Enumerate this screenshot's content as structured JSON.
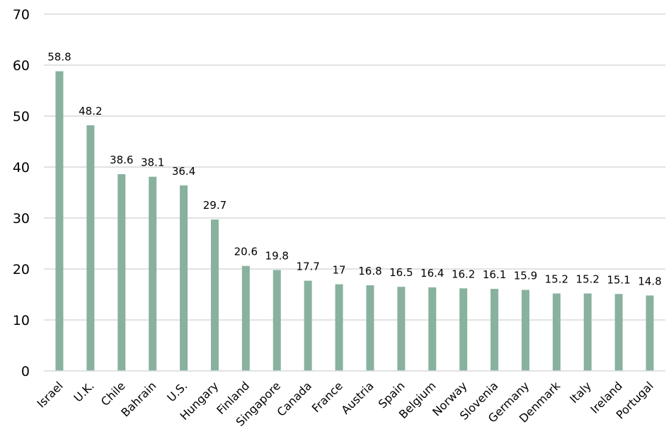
{
  "chart_data": {
    "type": "bar",
    "title": "",
    "xlabel": "",
    "ylabel": "",
    "categories": [
      "Israel",
      "U.K.",
      "Chile",
      "Bahrain",
      "U.S.",
      "Hungary",
      "Finland",
      "Singapore",
      "Canada",
      "France",
      "Austria",
      "Spain",
      "Belgium",
      "Norway",
      "Slovenia",
      "Germany",
      "Denmark",
      "Italy",
      "Ireland",
      "Portugal"
    ],
    "values": [
      58.8,
      48.2,
      38.6,
      38.1,
      36.4,
      29.7,
      20.6,
      19.8,
      17.7,
      17,
      16.8,
      16.5,
      16.4,
      16.2,
      16.1,
      15.9,
      15.2,
      15.2,
      15.1,
      14.8
    ],
    "value_labels": [
      "58.8",
      "48.2",
      "38.6",
      "38.1",
      "36.4",
      "29.7",
      "20.6",
      "19.8",
      "17.7",
      "17",
      "16.8",
      "16.5",
      "16.4",
      "16.2",
      "16.1",
      "15.9",
      "15.2",
      "15.2",
      "15.1",
      "14.8"
    ],
    "ylim": [
      0,
      70
    ],
    "yticks": [
      "0",
      "10",
      "20",
      "30",
      "40",
      "50",
      "60",
      "70"
    ],
    "ytick_values": [
      0,
      10,
      20,
      30,
      40,
      50,
      60,
      70
    ],
    "grid": true,
    "legend": "none",
    "bar_color": "#88b29e",
    "grid_color": "#d9d9d9",
    "axis_color": "#d9d9d9"
  }
}
